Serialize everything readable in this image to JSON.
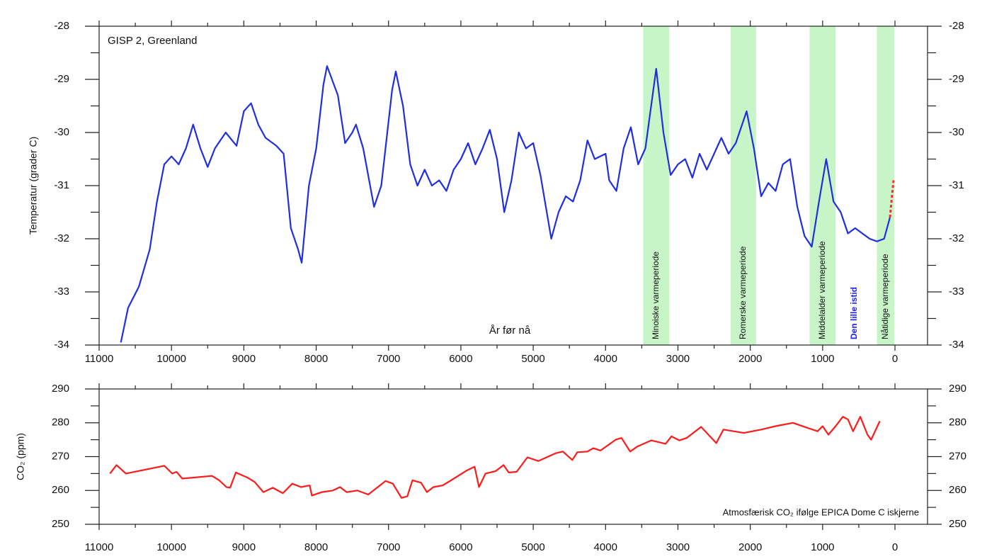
{
  "chart_data": [
    {
      "type": "line",
      "title": "GISP 2, Greenland",
      "ylabel": "Temperatur (grader C)",
      "xlabel": "År før nå",
      "xlim": [
        11000,
        -450
      ],
      "xticks": [
        11000,
        10000,
        9000,
        8000,
        7000,
        6000,
        5000,
        4000,
        3000,
        2000,
        1000,
        0
      ],
      "ylim": [
        -34,
        -28
      ],
      "yticks": [
        -34,
        -33,
        -32,
        -31,
        -30,
        -29,
        -28
      ],
      "bands": [
        {
          "label": "Minoiske varmeperiode",
          "start": 3480,
          "end": 3120,
          "color": "#c8f5c8"
        },
        {
          "label": "Romerske varmeperiode",
          "start": 2270,
          "end": 1920,
          "color": "#c8f5c8"
        },
        {
          "label": "Middelalder varmeperiode",
          "start": 1180,
          "end": 820,
          "color": "#c8f5c8"
        },
        {
          "label": "Nåtidige varmeperiode",
          "start": 250,
          "end": 10,
          "color": "#c8f5c8"
        }
      ],
      "annotations": [
        {
          "text": "Den lille istid",
          "x": 560,
          "color": "#2020ff"
        }
      ],
      "series": [
        {
          "color": "#1f2fe0",
          "dashed": false,
          "x": [
            10700,
            10600,
            10450,
            10300,
            10200,
            10100,
            10000,
            9900,
            9800,
            9700,
            9600,
            9500,
            9400,
            9250,
            9100,
            9000,
            8900,
            8800,
            8700,
            8550,
            8450,
            8350,
            8250,
            8200,
            8100,
            8000,
            7900,
            7850,
            7700,
            7600,
            7500,
            7450,
            7350,
            7200,
            7100,
            6950,
            6900,
            6800,
            6700,
            6600,
            6500,
            6400,
            6300,
            6200,
            6100,
            6000,
            5900,
            5800,
            5700,
            5600,
            5500,
            5400,
            5300,
            5200,
            5100,
            5000,
            4900,
            4800,
            4750,
            4650,
            4550,
            4450,
            4350,
            4250,
            4150,
            4000,
            3950,
            3850,
            3750,
            3650,
            3550,
            3450,
            3300,
            3200,
            3100,
            3000,
            2900,
            2800,
            2700,
            2600,
            2500,
            2400,
            2300,
            2200,
            2050,
            1950,
            1850,
            1750,
            1650,
            1550,
            1450,
            1350,
            1250,
            1150,
            1050,
            950,
            850,
            750,
            650,
            550,
            450,
            350,
            250,
            150,
            70
          ],
          "values": [
            -33.95,
            -33.3,
            -32.9,
            -32.2,
            -31.3,
            -30.6,
            -30.45,
            -30.6,
            -30.3,
            -29.85,
            -30.3,
            -30.65,
            -30.3,
            -30.0,
            -30.25,
            -29.6,
            -29.45,
            -29.85,
            -30.1,
            -30.25,
            -30.4,
            -31.8,
            -32.2,
            -32.45,
            -31.0,
            -30.3,
            -29.1,
            -28.75,
            -29.3,
            -30.2,
            -30.0,
            -29.85,
            -30.3,
            -31.4,
            -31.0,
            -29.2,
            -28.85,
            -29.5,
            -30.6,
            -31.0,
            -30.7,
            -31.0,
            -30.9,
            -31.1,
            -30.7,
            -30.5,
            -30.2,
            -30.6,
            -30.3,
            -29.95,
            -30.5,
            -31.5,
            -30.9,
            -30.0,
            -30.3,
            -30.2,
            -30.8,
            -31.6,
            -32.0,
            -31.5,
            -31.2,
            -31.3,
            -30.9,
            -30.15,
            -30.5,
            -30.4,
            -30.9,
            -31.1,
            -30.3,
            -29.9,
            -30.6,
            -30.3,
            -28.8,
            -30.0,
            -30.8,
            -30.6,
            -30.5,
            -30.85,
            -30.4,
            -30.7,
            -30.4,
            -30.1,
            -30.4,
            -30.2,
            -29.6,
            -30.3,
            -31.2,
            -30.95,
            -31.1,
            -30.6,
            -30.5,
            -31.4,
            -31.95,
            -32.15,
            -31.3,
            -30.5,
            -31.3,
            -31.5,
            -31.9,
            -31.8,
            -31.9,
            -32.0,
            -32.05,
            -32.0,
            -31.6
          ]
        },
        {
          "color": "#ff2a2a",
          "dashed": true,
          "x": [
            70,
            20
          ],
          "values": [
            -31.6,
            -30.9
          ]
        }
      ]
    },
    {
      "type": "line",
      "ylabel": "CO₂ (ppm)",
      "annotation": "Atmosfærisk CO₂ ifølge EPICA Dome C iskjerne",
      "xlim": [
        11000,
        -450
      ],
      "xticks": [
        11000,
        10000,
        9000,
        8000,
        7000,
        6000,
        5000,
        4000,
        3000,
        2000,
        1000,
        0
      ],
      "ylim": [
        250,
        290
      ],
      "yticks": [
        250,
        260,
        270,
        280,
        290
      ],
      "series": [
        {
          "color": "#ff1a1a",
          "dashed": false,
          "x": [
            10850,
            10760,
            10630,
            10100,
            9990,
            9930,
            9850,
            9440,
            9340,
            9240,
            9190,
            9110,
            8950,
            8850,
            8730,
            8600,
            8460,
            8330,
            8210,
            8090,
            8060,
            7920,
            7770,
            7670,
            7580,
            7430,
            7280,
            7040,
            6940,
            6820,
            6740,
            6670,
            6550,
            6470,
            6380,
            6250,
            5910,
            5810,
            5750,
            5660,
            5520,
            5410,
            5340,
            5230,
            5080,
            4930,
            4690,
            4590,
            4460,
            4390,
            4250,
            4170,
            4070,
            3860,
            3780,
            3660,
            3560,
            3370,
            3170,
            3090,
            2980,
            2880,
            2680,
            2470,
            2370,
            2090,
            1850,
            1650,
            1410,
            1210,
            1070,
            1000,
            920,
            820,
            720,
            650,
            580,
            480,
            380,
            330,
            210
          ],
          "values": [
            265,
            267.5,
            265,
            267.3,
            265,
            265.5,
            263.5,
            264.3,
            263,
            261,
            260.8,
            265.3,
            263.8,
            262.5,
            259.5,
            260.8,
            259.2,
            262,
            261,
            261.5,
            258.5,
            259.5,
            260,
            261,
            259.5,
            260,
            258.8,
            262.8,
            262,
            257.8,
            258.3,
            263,
            262.3,
            259.5,
            261,
            261.5,
            266,
            267,
            261,
            265,
            265.7,
            267.5,
            265.3,
            265.5,
            269.8,
            268.7,
            271,
            271.5,
            269,
            271.3,
            271.5,
            272.5,
            271.8,
            275,
            275.5,
            271.5,
            273,
            274.8,
            273.8,
            276,
            274.8,
            275.5,
            278.8,
            274,
            278,
            277,
            278,
            279,
            280,
            278.5,
            277.5,
            279,
            276.5,
            279,
            281.8,
            281,
            277.5,
            281.8,
            276.5,
            275,
            280.5
          ]
        }
      ]
    }
  ]
}
